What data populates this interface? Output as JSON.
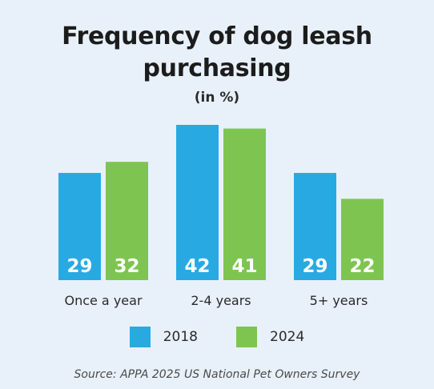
{
  "chart_data": {
    "type": "bar",
    "title": "Frequency of dog leash purchasing",
    "subtitle": "(in %)",
    "categories": [
      "Once a year",
      "2-4 years",
      "5+ years"
    ],
    "series": [
      {
        "name": "2018",
        "values": [
          29,
          42,
          29
        ],
        "color": "#29a9e1"
      },
      {
        "name": "2024",
        "values": [
          32,
          41,
          22
        ],
        "color": "#7dc550"
      }
    ],
    "legend_placement": "bottom",
    "grid": false,
    "source": "Source: APPA 2025 US National Pet Owners Survey"
  }
}
